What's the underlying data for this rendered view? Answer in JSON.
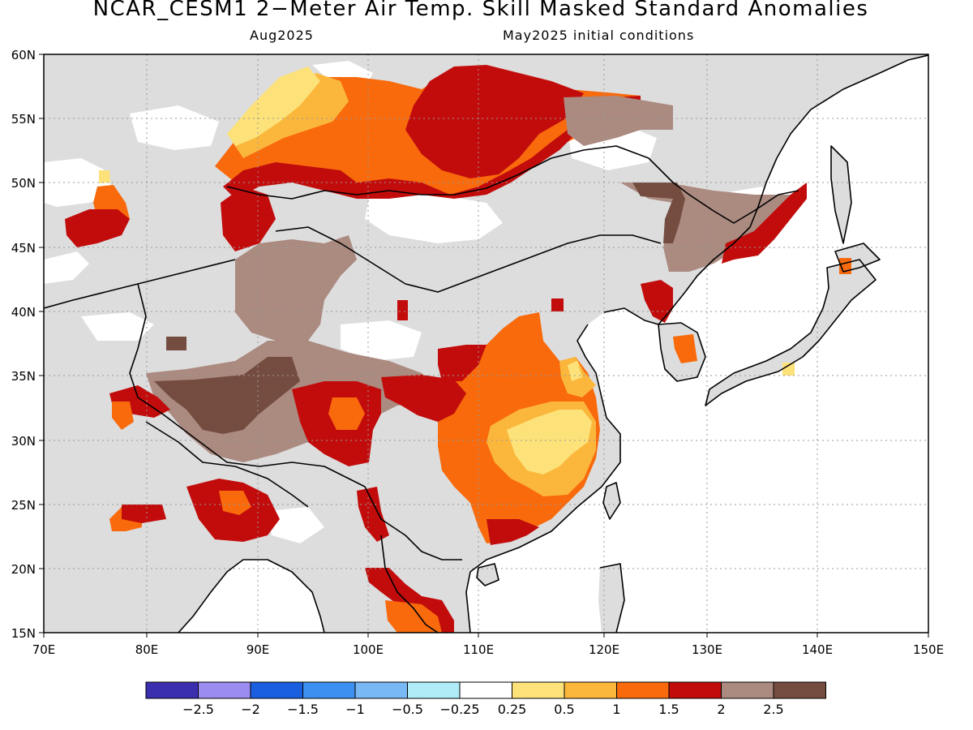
{
  "title": "NCAR_CESM1 2−Meter Air Temp. Skill Masked Standard Anomalies",
  "subtitle_left": "Aug2025",
  "subtitle_right": "May2025 initial conditions",
  "map": {
    "lon_ticks": [
      "70E",
      "80E",
      "90E",
      "100E",
      "110E",
      "120E",
      "130E",
      "140E",
      "150E"
    ],
    "lat_ticks": [
      "15N",
      "20N",
      "25N",
      "30N",
      "35N",
      "40N",
      "45N",
      "50N",
      "55N",
      "60N"
    ],
    "land_color": "#dddddd",
    "ocean_color": "#ffffff",
    "coastline_color": "#000000"
  },
  "legend": {
    "colors": [
      "#3b2fb0",
      "#9a8cf0",
      "#1a5fe0",
      "#3d8ff0",
      "#78b8f4",
      "#b0ecf8",
      "#ffffff",
      "#fde27a",
      "#fbb73c",
      "#f86a0c",
      "#c20c0c",
      "#ab8a80",
      "#754c40"
    ],
    "labels": [
      "−2.5",
      "−2",
      "−1.5",
      "−1",
      "−0.5",
      "−0.25",
      "0.25",
      "0.5",
      "1",
      "1.5",
      "2",
      "2.5"
    ]
  },
  "anomaly_colors": {
    "gt_0_25": "#fde27a",
    "gt_0_5": "#fbb73c",
    "gt_1": "#f86a0c",
    "gt_1_5": "#c20c0c",
    "gt_2": "#ab8a80",
    "gt_2_5": "#754c40"
  }
}
